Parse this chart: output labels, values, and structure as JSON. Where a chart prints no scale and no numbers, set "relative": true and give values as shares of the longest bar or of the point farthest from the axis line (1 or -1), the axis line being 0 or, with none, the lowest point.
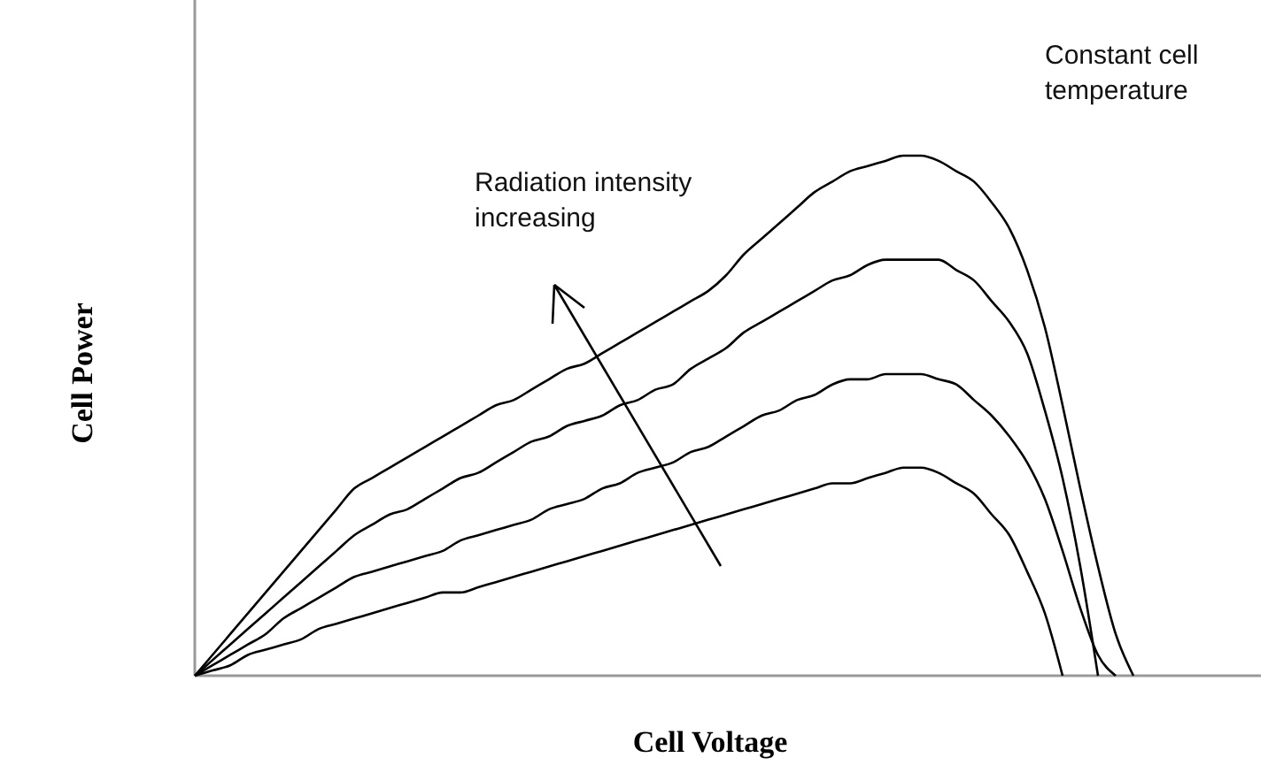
{
  "chart_data": {
    "type": "line",
    "relative": true,
    "xlabel": "Cell Voltage",
    "ylabel": "Cell Power",
    "annotations": [
      "Constant cell\ntemperature",
      "Radiation intensity\nincreasing"
    ],
    "categories": [
      null,
      null,
      null,
      null,
      null,
      null,
      null,
      null,
      null,
      null,
      null,
      null,
      null,
      null,
      null,
      null,
      null,
      null,
      null,
      null,
      null,
      null,
      null,
      null,
      null,
      null,
      null,
      null,
      null,
      null,
      null,
      null,
      null,
      null,
      null,
      null,
      null,
      null,
      null,
      null,
      null,
      null,
      null,
      null,
      null,
      null,
      null,
      null,
      null,
      null,
      null,
      null,
      null,
      null,
      null,
      null,
      null,
      null,
      null,
      null,
      null
    ],
    "marker": "none",
    "line_style": "solid",
    "grid": false,
    "series": [
      {
        "color": "#000000",
        "values": [
          0,
          0.04,
          0.08,
          0.12,
          0.16,
          0.2,
          0.24,
          0.28,
          0.32,
          0.36,
          0.38,
          0.4,
          0.42,
          0.44,
          0.46,
          0.48,
          0.5,
          0.52,
          0.53,
          0.55,
          0.57,
          0.59,
          0.6,
          0.62,
          0.64,
          0.66,
          0.68,
          0.7,
          0.72,
          0.74,
          0.77,
          0.81,
          0.84,
          0.87,
          0.9,
          0.93,
          0.95,
          0.97,
          0.98,
          0.99,
          1,
          1,
          0.99,
          0.97,
          0.95,
          0.91,
          0.86,
          0.78,
          0.67,
          0.52,
          0.36,
          0.21,
          0.08,
          0,
          null,
          null,
          null,
          null,
          null,
          null,
          null
        ]
      },
      {
        "color": "#000000",
        "values": [
          0,
          0.03,
          0.06,
          0.09,
          0.12,
          0.15,
          0.18,
          0.21,
          0.24,
          0.27,
          0.29,
          0.31,
          0.32,
          0.34,
          0.36,
          0.38,
          0.39,
          0.41,
          0.43,
          0.45,
          0.46,
          0.48,
          0.49,
          0.5,
          0.52,
          0.53,
          0.55,
          0.56,
          0.59,
          0.61,
          0.63,
          0.66,
          0.68,
          0.7,
          0.72,
          0.74,
          0.76,
          0.77,
          0.79,
          0.8,
          0.8,
          0.8,
          0.8,
          0.78,
          0.76,
          0.72,
          0.68,
          0.62,
          0.51,
          0.38,
          0.21,
          0,
          null,
          null,
          null,
          null,
          null,
          null,
          null,
          null,
          null
        ]
      },
      {
        "color": "#000000",
        "values": [
          0,
          0.02,
          0.04,
          0.06,
          0.08,
          0.11,
          0.13,
          0.15,
          0.17,
          0.19,
          0.2,
          0.21,
          0.22,
          0.23,
          0.24,
          0.26,
          0.27,
          0.28,
          0.29,
          0.3,
          0.32,
          0.33,
          0.34,
          0.36,
          0.37,
          0.39,
          0.4,
          0.41,
          0.43,
          0.44,
          0.46,
          0.48,
          0.5,
          0.51,
          0.53,
          0.54,
          0.56,
          0.57,
          0.57,
          0.58,
          0.58,
          0.58,
          0.57,
          0.56,
          0.53,
          0.5,
          0.46,
          0.41,
          0.34,
          0.24,
          0.13,
          0.04,
          0,
          null,
          null,
          null,
          null,
          null,
          null,
          null,
          null
        ]
      },
      {
        "color": "#000000",
        "values": [
          0,
          0.01,
          0.02,
          0.04,
          0.05,
          0.06,
          0.07,
          0.09,
          0.1,
          0.11,
          0.12,
          0.13,
          0.14,
          0.15,
          0.16,
          0.16,
          0.17,
          0.18,
          0.19,
          0.2,
          0.21,
          0.22,
          0.23,
          0.24,
          0.25,
          0.26,
          0.27,
          0.28,
          0.29,
          0.3,
          0.31,
          0.32,
          0.33,
          0.34,
          0.35,
          0.36,
          0.37,
          0.37,
          0.38,
          0.39,
          0.4,
          0.4,
          0.39,
          0.37,
          0.35,
          0.31,
          0.27,
          0.2,
          0.12,
          0,
          null,
          null,
          null,
          null,
          null,
          null,
          null,
          null,
          null,
          null,
          null
        ]
      }
    ]
  }
}
